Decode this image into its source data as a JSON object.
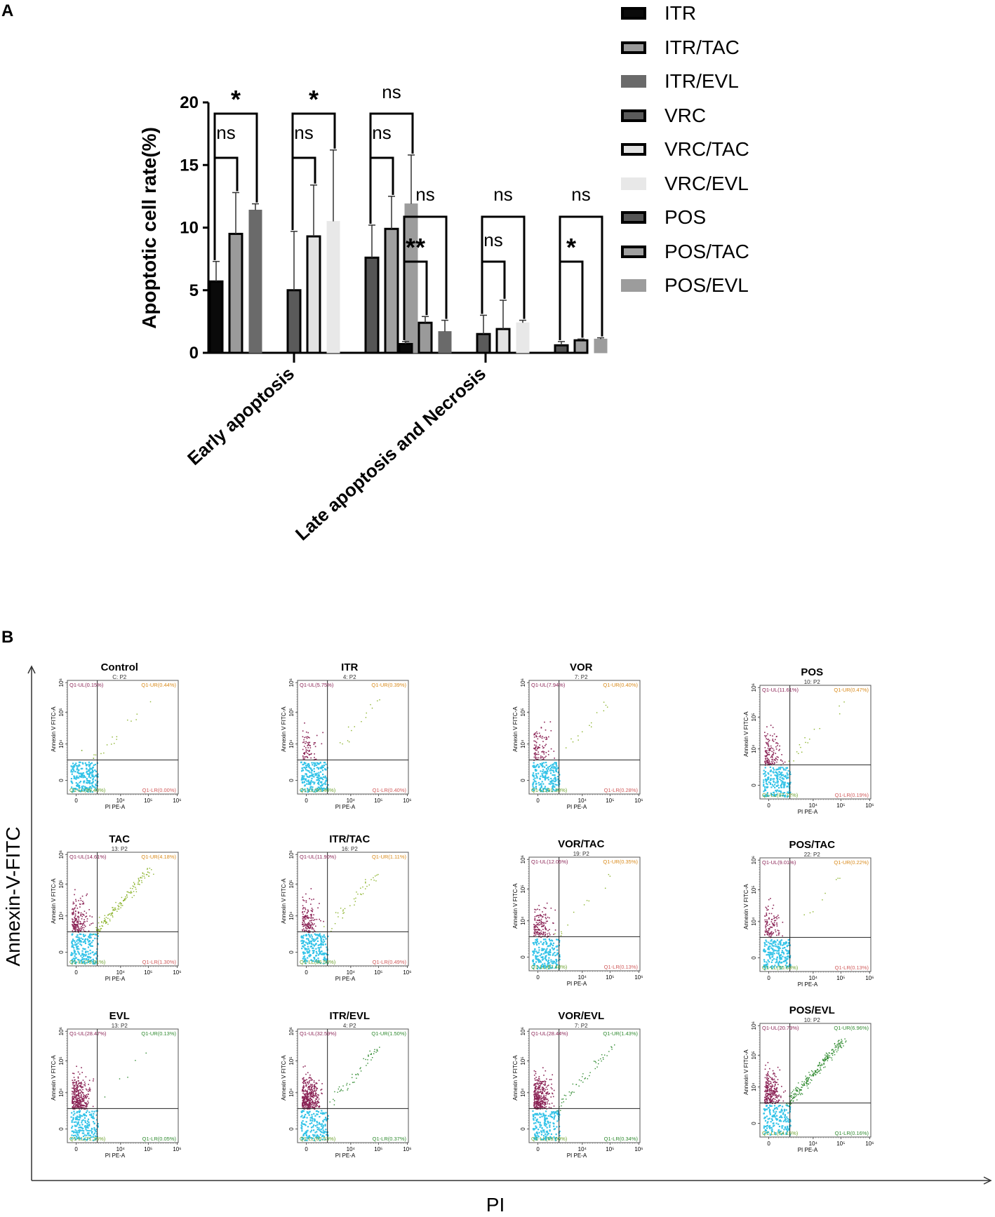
{
  "panel_labels": {
    "a": "A",
    "b": "B"
  },
  "chart_data": [
    {
      "type": "bar",
      "ylabel": "Apoptotic cell rate(%)",
      "ylim": [
        0,
        20
      ],
      "yticks": [
        "0",
        "5",
        "10",
        "15",
        "20"
      ],
      "categories": [
        "Early apoptosis",
        "Late apoptosis and Necrosis"
      ],
      "series": [
        {
          "name": "ITR",
          "fill": "#0a0a0a",
          "stroke": "#000000",
          "values": [
            5.7,
            0.7
          ],
          "errors": [
            1.6,
            0.2
          ]
        },
        {
          "name": "ITR/TAC",
          "fill": "#9a9a9a",
          "stroke": "#000000",
          "values": [
            9.5,
            2.4
          ],
          "errors": [
            3.3,
            0.5
          ]
        },
        {
          "name": "ITR/EVL",
          "fill": "#6a6a6a",
          "stroke": "#6a6a6a",
          "values": [
            11.4,
            1.7
          ],
          "errors": [
            0.5,
            0.9
          ]
        },
        {
          "name": "VRC",
          "fill": "#5a5a5a",
          "stroke": "#000000",
          "values": [
            5.0,
            1.5
          ],
          "errors": [
            4.7,
            1.5
          ]
        },
        {
          "name": "VRC/TAC",
          "fill": "#e2e2e2",
          "stroke": "#000000",
          "values": [
            9.3,
            1.9
          ],
          "errors": [
            4.1,
            2.3
          ]
        },
        {
          "name": "VRC/EVL",
          "fill": "#e8e8e8",
          "stroke": "#e8e8e8",
          "values": [
            10.5,
            2.4
          ],
          "errors": [
            5.7,
            0.2
          ]
        },
        {
          "name": "POS",
          "fill": "#555555",
          "stroke": "#000000",
          "values": [
            7.6,
            0.6
          ],
          "errors": [
            2.6,
            0.3
          ]
        },
        {
          "name": "POS/TAC",
          "fill": "#a0a0a0",
          "stroke": "#000000",
          "values": [
            9.9,
            1.0
          ],
          "errors": [
            2.6,
            0.1
          ]
        },
        {
          "name": "POS/EVL",
          "fill": "#9c9c9c",
          "stroke": "#9c9c9c",
          "values": [
            11.9,
            1.1
          ],
          "errors": [
            3.9,
            0.1
          ]
        }
      ],
      "significance": [
        {
          "category": "Early apoptosis",
          "from": "ITR",
          "to": "ITR/TAC",
          "label": "ns"
        },
        {
          "category": "Early apoptosis",
          "from": "ITR",
          "to": "ITR/EVL",
          "label": "*"
        },
        {
          "category": "Early apoptosis",
          "from": "VRC",
          "to": "VRC/TAC",
          "label": "ns"
        },
        {
          "category": "Early apoptosis",
          "from": "VRC",
          "to": "VRC/EVL",
          "label": "*"
        },
        {
          "category": "Early apoptosis",
          "from": "POS",
          "to": "POS/TAC",
          "label": "ns"
        },
        {
          "category": "Early apoptosis",
          "from": "POS",
          "to": "POS/EVL",
          "label": "ns"
        },
        {
          "category": "Late apoptosis and Necrosis",
          "from": "ITR",
          "to": "ITR/TAC",
          "label": "**"
        },
        {
          "category": "Late apoptosis and Necrosis",
          "from": "ITR",
          "to": "ITR/EVL",
          "label": "ns"
        },
        {
          "category": "Late apoptosis and Necrosis",
          "from": "VRC",
          "to": "VRC/TAC",
          "label": "ns"
        },
        {
          "category": "Late apoptosis and Necrosis",
          "from": "VRC",
          "to": "VRC/EVL",
          "label": "ns"
        },
        {
          "category": "Late apoptosis and Necrosis",
          "from": "POS",
          "to": "POS/TAC",
          "label": "*"
        },
        {
          "category": "Late apoptosis and Necrosis",
          "from": "POS",
          "to": "POS/EVL",
          "label": "ns"
        }
      ]
    },
    {
      "type": "scatter",
      "xlabel": "PI",
      "ylabel": "Annexin-V-FITC",
      "plot_xlabel": "PI PE-A",
      "plot_ylabel": "Annexin V FITC-A",
      "axis_ticks": {
        "x": [
          "0",
          "10⁴",
          "10⁵",
          "10⁶"
        ],
        "y": [
          "0",
          "10⁴",
          "10⁵",
          "10⁶"
        ]
      },
      "plots": [
        {
          "title": "Control",
          "gate": "C: P2",
          "ul": "Q1-UL(0.15%)",
          "ur": "Q1-UR(0.44%)",
          "ll": "Q1-LL(99.40%)",
          "lr": "Q1-LR(0.00%)",
          "ul_pct": 0.15,
          "ur_pct": 0.44,
          "ll_pct": 99.4,
          "lr_pct": 0.0
        },
        {
          "title": "ITR",
          "gate": "4: P2",
          "ul": "Q1-UL(5.75%)",
          "ur": "Q1-UR(0.39%)",
          "ll": "Q1-LL(93.46%)",
          "lr": "Q1-LR(0.40%)",
          "ul_pct": 5.75,
          "ur_pct": 0.39,
          "ll_pct": 93.46,
          "lr_pct": 0.4
        },
        {
          "title": "VOR",
          "gate": "7: P2",
          "ul": "Q1-UL(7.94%)",
          "ur": "Q1-UR(0.40%)",
          "ll": "Q1-LL(91.38%)",
          "lr": "Q1-LR(0.28%)",
          "ul_pct": 7.94,
          "ur_pct": 0.4,
          "ll_pct": 91.38,
          "lr_pct": 0.28
        },
        {
          "title": "POS",
          "gate": "10: P2",
          "ul": "Q1-UL(11.61%)",
          "ur": "Q1-UR(0.47%)",
          "ll": "Q1-LL(87.72%)",
          "lr": "Q1-LR(0.19%)",
          "ul_pct": 11.61,
          "ur_pct": 0.47,
          "ll_pct": 87.72,
          "lr_pct": 0.19
        },
        {
          "title": "TAC",
          "gate": "13: P2",
          "ul": "Q1-UL(14.61%)",
          "ur": "Q1-UR(4.18%)",
          "ll": "Q1-LL(79.91%)",
          "lr": "Q1-LR(1.30%)",
          "ul_pct": 14.61,
          "ur_pct": 4.18,
          "ll_pct": 79.91,
          "lr_pct": 1.3
        },
        {
          "title": "ITR/TAC",
          "gate": "16: P2",
          "ul": "Q1-UL(11.90%)",
          "ur": "Q1-UR(1.11%)",
          "ll": "Q1-LL(86.50%)",
          "lr": "Q1-LR(0.49%)",
          "ul_pct": 11.9,
          "ur_pct": 1.11,
          "ll_pct": 86.5,
          "lr_pct": 0.49
        },
        {
          "title": "VOR/TAC",
          "gate": "19: P2",
          "ul": "Q1-UL(12.05%)",
          "ur": "Q1-UR(0.35%)",
          "ll": "Q1-LL(87.48%)",
          "lr": "Q1-LR(0.13%)",
          "ul_pct": 12.05,
          "ur_pct": 0.35,
          "ll_pct": 87.48,
          "lr_pct": 0.13
        },
        {
          "title": "POS/TAC",
          "gate": "22: P2",
          "ul": "Q1-UL(9.01%)",
          "ur": "Q1-UR(0.22%)",
          "ll": "Q1-LL(90.63%)",
          "lr": "Q1-LR(0.13%)",
          "ul_pct": 9.01,
          "ur_pct": 0.22,
          "ll_pct": 90.63,
          "lr_pct": 0.13
        },
        {
          "title": "EVL",
          "gate": "13: P2",
          "ul": "Q1-UL(28.47%)",
          "ur": "Q1-UR(0.13%)",
          "ll": "Q1-LL(71.35%)",
          "lr": "Q1-LR(0.05%)",
          "ul_pct": 28.47,
          "ur_pct": 0.13,
          "ll_pct": 71.35,
          "lr_pct": 0.05
        },
        {
          "title": "ITR/EVL",
          "gate": "4: P2",
          "ul": "Q1-UL(32.59%)",
          "ur": "Q1-UR(1.50%)",
          "ll": "Q1-LL(65.53%)",
          "lr": "Q1-LR(0.37%)",
          "ul_pct": 32.59,
          "ur_pct": 1.5,
          "ll_pct": 65.53,
          "lr_pct": 0.37
        },
        {
          "title": "VOR/EVL",
          "gate": "7: P2",
          "ul": "Q1-UL(28.44%)",
          "ur": "Q1-UR(1.43%)",
          "ll": "Q1-LL(69.00%)",
          "lr": "Q1-LR(0.34%)",
          "ul_pct": 28.44,
          "ur_pct": 1.43,
          "ll_pct": 69.0,
          "lr_pct": 0.34
        },
        {
          "title": "POS/EVL",
          "gate": "10: P2",
          "ul": "Q1-UL(20.73%)",
          "ur": "Q1-UR(6.96%)",
          "ll": "Q1-LL(64.15%)",
          "lr": "Q1-LR(0.16%)",
          "ul_pct": 20.73,
          "ur_pct": 6.96,
          "ll_pct": 64.15,
          "lr_pct": 0.16
        }
      ]
    }
  ]
}
